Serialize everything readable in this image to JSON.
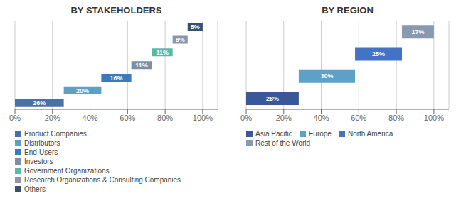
{
  "chart_data": [
    {
      "type": "bar",
      "orientation": "horizontal",
      "title": "BY STAKEHOLDERS",
      "categories": [
        "Product Companies",
        "Distributors",
        "End-Users",
        "Investors",
        "Government Organizations",
        "Research Organizations & Consulting Companies",
        "Others"
      ],
      "values": [
        26,
        20,
        16,
        11,
        11,
        8,
        8
      ],
      "starts": [
        0,
        26,
        46,
        62,
        73,
        84,
        92
      ],
      "value_labels": [
        "26%",
        "20%",
        "16%",
        "11%",
        "11%",
        "8%",
        "8%"
      ],
      "colors": [
        "#4a6fad",
        "#5da0bf",
        "#3a7abf",
        "#7a8fa8",
        "#5ab8a8",
        "#8a96a8",
        "#3a5070"
      ],
      "data_labels": true,
      "xlim": [
        0,
        108
      ],
      "xticks": [
        {
          "value": 0,
          "label": "0%"
        },
        {
          "value": 20,
          "label": "20%"
        },
        {
          "value": 40,
          "label": "40%"
        },
        {
          "value": 60,
          "label": "60%"
        },
        {
          "value": 80,
          "label": "80%"
        },
        {
          "value": 100,
          "label": "100%"
        }
      ],
      "grid": true,
      "tick_labels": "x",
      "legend": "bottom"
    },
    {
      "type": "bar",
      "orientation": "horizontal",
      "title": "BY REGION",
      "categories": [
        "Asia Pacific",
        "Europe",
        "North America",
        "Rest of the World"
      ],
      "values": [
        28,
        30,
        25,
        17
      ],
      "starts": [
        0,
        28,
        58,
        83
      ],
      "value_labels": [
        "28%",
        "30%",
        "25%",
        "17%"
      ],
      "colors": [
        "#3a5898",
        "#5da0c8",
        "#4472c4",
        "#8899b0"
      ],
      "data_labels": true,
      "xlim": [
        0,
        108
      ],
      "xticks": [
        {
          "value": 0,
          "label": "0%"
        },
        {
          "value": 20,
          "label": "20%"
        },
        {
          "value": 40,
          "label": "40%"
        },
        {
          "value": 60,
          "label": "60%"
        },
        {
          "value": 80,
          "label": "80%"
        },
        {
          "value": 100,
          "label": "100%"
        }
      ],
      "grid": true,
      "tick_labels": "x",
      "legend": "bottom"
    }
  ]
}
